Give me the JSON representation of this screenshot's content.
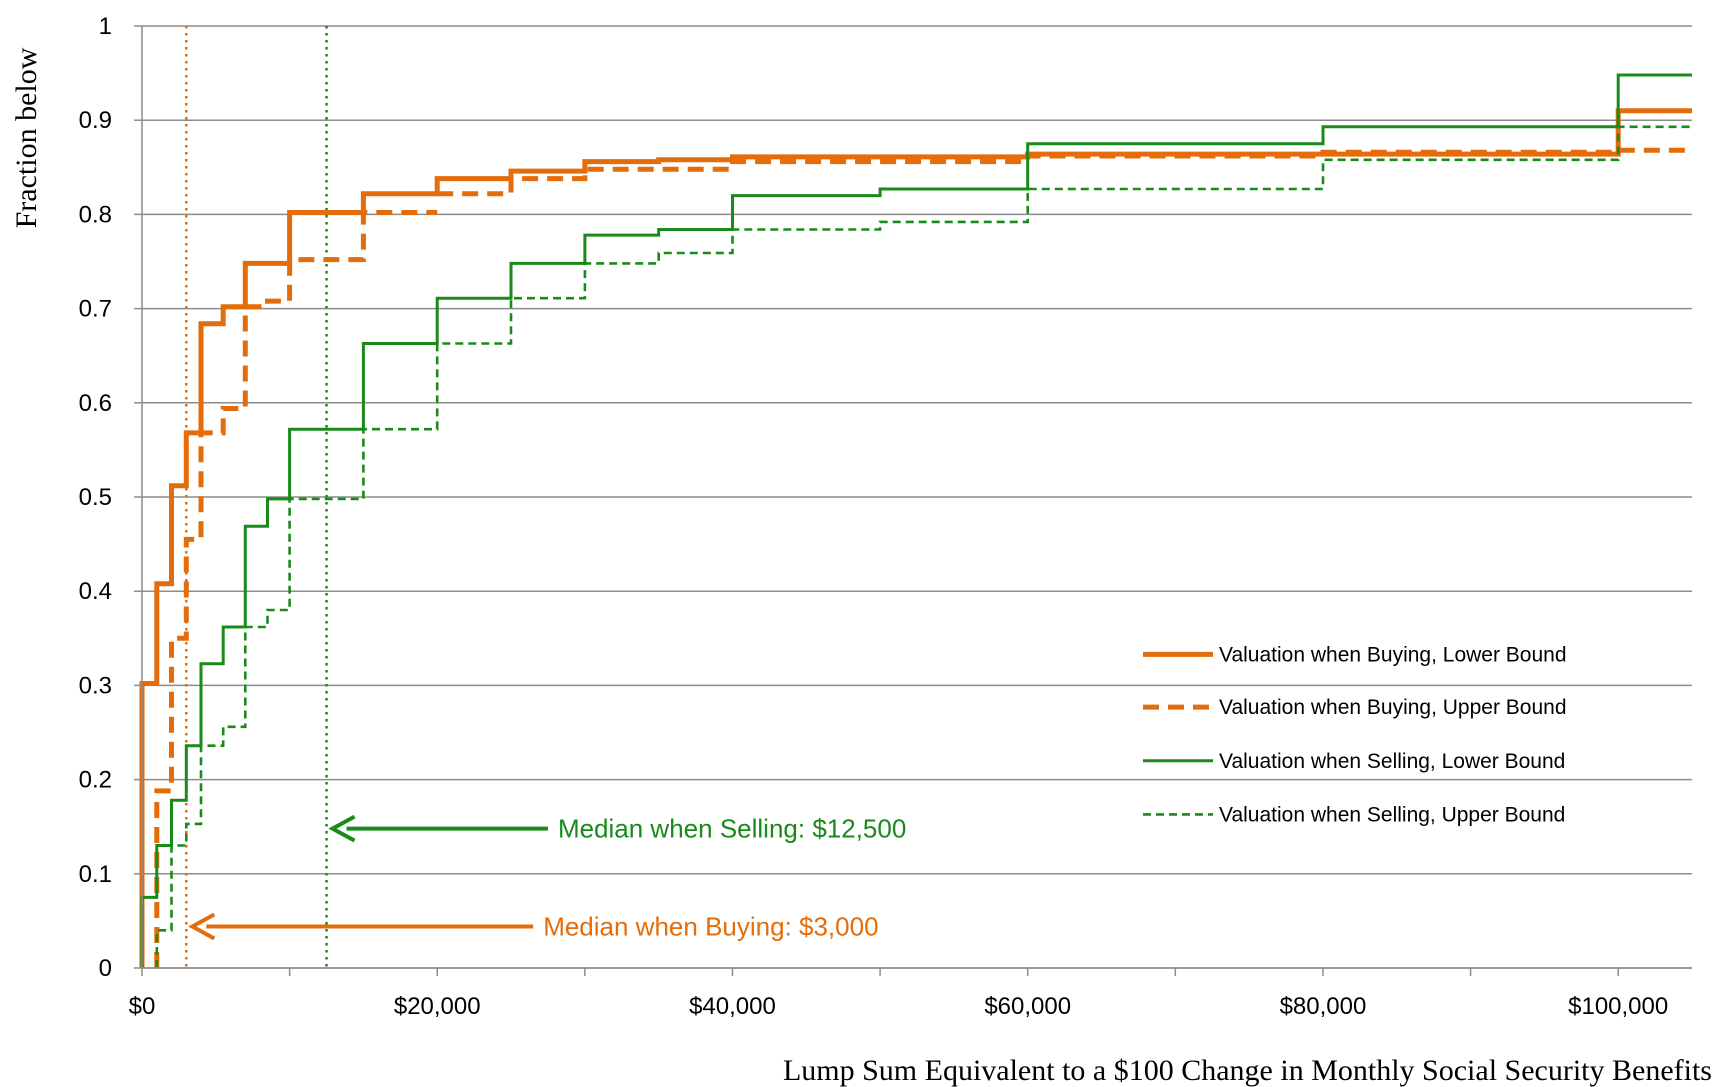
{
  "chart_data": {
    "type": "line",
    "step": true,
    "xlabel": "Lump Sum Equivalent to a $100 Change in Monthly Social Security Benefits",
    "ylabel": "Fraction below",
    "xlim": [
      0,
      105000
    ],
    "ylim": [
      0,
      1
    ],
    "x_ticks": [
      0,
      20000,
      40000,
      60000,
      80000,
      100000
    ],
    "x_tick_labels": [
      "$0",
      "$20,000",
      "$40,000",
      "$60,000",
      "$80,000",
      "$100,000"
    ],
    "y_ticks": [
      0,
      0.1,
      0.2,
      0.3,
      0.4,
      0.5,
      0.6,
      0.7,
      0.8,
      0.9,
      1
    ],
    "y_tick_labels": [
      "0",
      "0.1",
      "0.2",
      "0.3",
      "0.4",
      "0.5",
      "0.6",
      "0.7",
      "0.8",
      "0.9",
      "1"
    ],
    "grid": "horizontal",
    "legend_position": "lower-right",
    "series": [
      {
        "name": "Valuation when Buying, Lower Bound",
        "color": "#e46c0a",
        "style": "solid-thick",
        "points": [
          [
            0,
            0
          ],
          [
            0,
            0.302
          ],
          [
            1000,
            0.302
          ],
          [
            1000,
            0.408
          ],
          [
            2000,
            0.408
          ],
          [
            2000,
            0.512
          ],
          [
            3000,
            0.512
          ],
          [
            3000,
            0.568
          ],
          [
            4000,
            0.568
          ],
          [
            4000,
            0.684
          ],
          [
            5500,
            0.684
          ],
          [
            5500,
            0.702
          ],
          [
            7000,
            0.702
          ],
          [
            7000,
            0.748
          ],
          [
            10000,
            0.748
          ],
          [
            10000,
            0.802
          ],
          [
            15000,
            0.802
          ],
          [
            15000,
            0.822
          ],
          [
            20000,
            0.822
          ],
          [
            20000,
            0.838
          ],
          [
            25000,
            0.838
          ],
          [
            25000,
            0.846
          ],
          [
            30000,
            0.846
          ],
          [
            30000,
            0.856
          ],
          [
            35000,
            0.856
          ],
          [
            35000,
            0.858
          ],
          [
            40000,
            0.858
          ],
          [
            40000,
            0.861
          ],
          [
            60000,
            0.861
          ],
          [
            60000,
            0.864
          ],
          [
            100000,
            0.864
          ],
          [
            100000,
            0.91
          ],
          [
            105000,
            0.91
          ]
        ]
      },
      {
        "name": "Valuation when Buying, Upper Bound",
        "color": "#e46c0a",
        "style": "dashed-thick",
        "points": [
          [
            1000,
            0
          ],
          [
            1000,
            0.188
          ],
          [
            2000,
            0.188
          ],
          [
            2000,
            0.35
          ],
          [
            3000,
            0.35
          ],
          [
            3000,
            0.455
          ],
          [
            4000,
            0.455
          ],
          [
            4000,
            0.568
          ],
          [
            5500,
            0.568
          ],
          [
            5500,
            0.594
          ],
          [
            7000,
            0.594
          ],
          [
            7000,
            0.702
          ],
          [
            8500,
            0.702
          ],
          [
            8500,
            0.708
          ],
          [
            10000,
            0.708
          ],
          [
            10000,
            0.752
          ],
          [
            15000,
            0.752
          ],
          [
            15000,
            0.802
          ],
          [
            20000,
            0.802
          ]
        ],
        "points_tail": [
          [
            20000,
            0.822
          ],
          [
            25000,
            0.822
          ],
          [
            25000,
            0.838
          ],
          [
            30000,
            0.838
          ],
          [
            30000,
            0.848
          ],
          [
            40000,
            0.848
          ],
          [
            40000,
            0.856
          ],
          [
            60000,
            0.856
          ],
          [
            60000,
            0.862
          ],
          [
            80000,
            0.862
          ],
          [
            80000,
            0.866
          ],
          [
            100000,
            0.866
          ],
          [
            100000,
            0.868
          ],
          [
            105000,
            0.868
          ]
        ]
      },
      {
        "name": "Valuation when Selling, Lower Bound",
        "color": "#1a8a1a",
        "style": "solid",
        "points": [
          [
            0,
            0
          ],
          [
            0,
            0.075
          ],
          [
            1000,
            0.075
          ],
          [
            1000,
            0.13
          ],
          [
            2000,
            0.13
          ],
          [
            2000,
            0.178
          ],
          [
            3000,
            0.178
          ],
          [
            3000,
            0.236
          ],
          [
            4000,
            0.236
          ],
          [
            4000,
            0.323
          ],
          [
            5500,
            0.323
          ],
          [
            5500,
            0.362
          ],
          [
            7000,
            0.362
          ],
          [
            7000,
            0.469
          ],
          [
            8500,
            0.469
          ],
          [
            8500,
            0.498
          ],
          [
            10000,
            0.498
          ],
          [
            10000,
            0.572
          ],
          [
            15000,
            0.572
          ],
          [
            15000,
            0.663
          ],
          [
            20000,
            0.663
          ],
          [
            20000,
            0.711
          ],
          [
            25000,
            0.711
          ],
          [
            25000,
            0.748
          ],
          [
            30000,
            0.748
          ],
          [
            30000,
            0.778
          ],
          [
            35000,
            0.778
          ],
          [
            35000,
            0.784
          ],
          [
            40000,
            0.784
          ],
          [
            40000,
            0.82
          ],
          [
            50000,
            0.82
          ],
          [
            50000,
            0.827
          ],
          [
            60000,
            0.827
          ],
          [
            60000,
            0.875
          ],
          [
            80000,
            0.875
          ],
          [
            80000,
            0.893
          ],
          [
            100000,
            0.893
          ],
          [
            100000,
            0.948
          ],
          [
            105000,
            0.948
          ]
        ]
      },
      {
        "name": "Valuation when Selling, Upper Bound",
        "color": "#1a8a1a",
        "style": "dashed",
        "points": [
          [
            1000,
            0
          ],
          [
            1000,
            0.04
          ],
          [
            2000,
            0.04
          ],
          [
            2000,
            0.13
          ],
          [
            3000,
            0.13
          ],
          [
            3000,
            0.153
          ],
          [
            4000,
            0.153
          ],
          [
            4000,
            0.236
          ],
          [
            5500,
            0.236
          ],
          [
            5500,
            0.256
          ],
          [
            7000,
            0.256
          ],
          [
            7000,
            0.362
          ],
          [
            8500,
            0.362
          ],
          [
            8500,
            0.38
          ],
          [
            10000,
            0.38
          ],
          [
            10000,
            0.498
          ],
          [
            15000,
            0.498
          ],
          [
            15000,
            0.572
          ],
          [
            20000,
            0.572
          ],
          [
            20000,
            0.663
          ],
          [
            25000,
            0.663
          ],
          [
            25000,
            0.711
          ],
          [
            30000,
            0.711
          ],
          [
            30000,
            0.748
          ],
          [
            35000,
            0.748
          ],
          [
            35000,
            0.759
          ],
          [
            40000,
            0.759
          ],
          [
            40000,
            0.784
          ],
          [
            50000,
            0.784
          ],
          [
            50000,
            0.792
          ],
          [
            60000,
            0.792
          ],
          [
            60000,
            0.827
          ],
          [
            80000,
            0.827
          ],
          [
            80000,
            0.858
          ],
          [
            100000,
            0.858
          ],
          [
            100000,
            0.893
          ],
          [
            105000,
            0.893
          ]
        ]
      }
    ],
    "reference_lines": [
      {
        "x": 3000,
        "color": "#e46c0a"
      },
      {
        "x": 12500,
        "color": "#1a8a1a"
      }
    ],
    "annotations": [
      {
        "text": "Median when Selling: $12,500",
        "color": "#1a8a1a",
        "arrow_to_x": 12500,
        "y": 0.148,
        "arrow_from_x": 27500
      },
      {
        "text": "Median when Buying: $3,000",
        "color": "#e46c0a",
        "arrow_to_x": 3000,
        "y": 0.044,
        "arrow_from_x": 26500
      }
    ]
  },
  "colors": {
    "grid": "#8c8c8c",
    "axis": "#8c8c8c"
  }
}
